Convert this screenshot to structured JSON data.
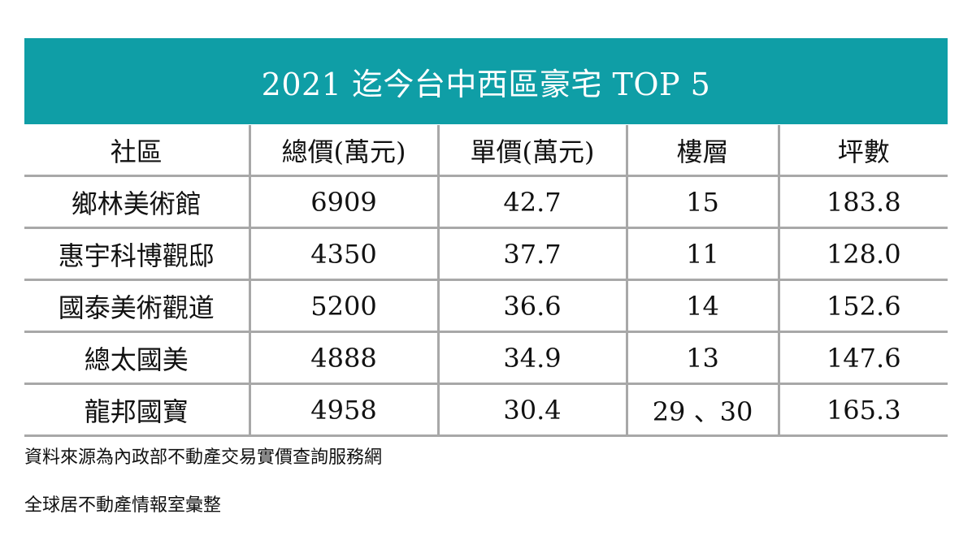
{
  "title": "2021 迄今台中西區豪宅 TOP 5",
  "columns": [
    "社區",
    "總價(萬元)",
    "單價(萬元)",
    "樓層",
    "坪數"
  ],
  "rows": [
    [
      "鄉林美術館",
      "6909",
      "42.7",
      "15",
      "183.8"
    ],
    [
      "惠宇科博觀邸",
      "4350",
      "37.7",
      "11",
      "128.0"
    ],
    [
      "國泰美術觀道",
      "5200",
      "36.6",
      "14",
      "152.6"
    ],
    [
      "總太國美",
      "4888",
      "34.9",
      "13",
      "147.6"
    ],
    [
      "龍邦國寶",
      "4958",
      "30.4",
      "29 、30",
      "165.3"
    ]
  ],
  "notes": {
    "source": "資料來源為內政部不動產交易實價查詢服務網",
    "compiled_by": "全球居不動產情報室彙整"
  },
  "colors": {
    "title_bar": "#0f9ea6",
    "title_text": "#ffffff",
    "grid_line": "#a8a8a8"
  }
}
